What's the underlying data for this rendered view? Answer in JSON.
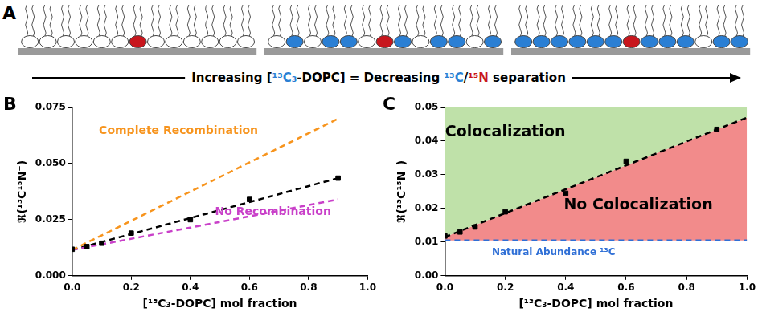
{
  "panel_a": {
    "label": "A",
    "caption": [
      "Increasing [",
      "¹³C₃",
      "-DOPC] = Decreasing ",
      "¹³C",
      "/",
      "¹⁵N",
      " separation"
    ]
  },
  "chart_data": [
    {
      "type": "scatter",
      "title": "B",
      "x_label": "[¹³C₃-DOPC] mol fraction",
      "y_label": "ℜ(¹³C¹⁵N⁻)",
      "xlim": [
        0,
        1
      ],
      "xticks": [
        {
          "value": 0,
          "label": "0.0"
        },
        {
          "value": 0.2,
          "label": "0.2"
        },
        {
          "value": 0.4,
          "label": "0.4"
        },
        {
          "value": 0.6,
          "label": "0.6"
        },
        {
          "value": 0.8,
          "label": "0.8"
        },
        {
          "value": 1,
          "label": "1.0"
        }
      ],
      "ylim": [
        0,
        0.075
      ],
      "yticks": [
        {
          "value": 0,
          "label": "0.000"
        },
        {
          "value": 0.025,
          "label": "0.025"
        },
        {
          "value": 0.05,
          "label": "0.050"
        },
        {
          "value": 0.075,
          "label": "0.075"
        }
      ],
      "grid": false,
      "series": [
        {
          "name": "Complete Recombination",
          "type": "line",
          "line_style": "dashed",
          "color": "#f7941d",
          "x": [
            0,
            0.9
          ],
          "values": [
            0.0115,
            0.07
          ]
        },
        {
          "name": "No Recombination",
          "type": "line",
          "line_style": "dashed",
          "color": "#c940c9",
          "x": [
            0,
            0.9
          ],
          "values": [
            0.0115,
            0.034
          ]
        },
        {
          "type": "line",
          "line_style": "dashed",
          "color": "#000000",
          "x": [
            0,
            0.9
          ],
          "values": [
            0.0115,
            0.0435
          ]
        },
        {
          "type": "scatter",
          "marker": "square",
          "color": "#000000",
          "x": [
            0,
            0.05,
            0.1,
            0.2,
            0.4,
            0.6,
            0.9
          ],
          "values": [
            0.0118,
            0.013,
            0.0145,
            0.019,
            0.025,
            0.034,
            0.0435
          ]
        }
      ]
    },
    {
      "type": "scatter",
      "title": "C",
      "x_label": "[¹³C₃-DOPC] mol fraction",
      "y_label": "ℜ(¹³C¹⁵N⁻)",
      "xlim": [
        0,
        1
      ],
      "xticks": [
        {
          "value": 0,
          "label": "0.0"
        },
        {
          "value": 0.2,
          "label": "0.2"
        },
        {
          "value": 0.4,
          "label": "0.4"
        },
        {
          "value": 0.6,
          "label": "0.6"
        },
        {
          "value": 0.8,
          "label": "0.8"
        },
        {
          "value": 1,
          "label": "1.0"
        }
      ],
      "ylim": [
        0,
        0.05
      ],
      "yticks": [
        {
          "value": 0,
          "label": "0.00"
        },
        {
          "value": 0.01,
          "label": "0.01"
        },
        {
          "value": 0.02,
          "label": "0.02"
        },
        {
          "value": 0.03,
          "label": "0.03"
        },
        {
          "value": 0.04,
          "label": "0.04"
        },
        {
          "value": 0.05,
          "label": "0.05"
        }
      ],
      "grid": false,
      "series": [
        {
          "name": "Colocalization",
          "type": "area",
          "color": "#bfe1a9",
          "x": [
            0,
            1
          ],
          "values": [
            0.0115,
            0.047
          ]
        },
        {
          "name": "No Colocalization",
          "type": "area",
          "color": "#f28b8b",
          "x": [
            0,
            1
          ],
          "values": [
            0.0105,
            0.0105
          ]
        },
        {
          "name": "Natural Abundance ¹³C",
          "type": "line",
          "line_style": "dashed",
          "color": "#2f6fd6",
          "x": [
            0,
            1
          ],
          "values": [
            0.0105,
            0.0105
          ]
        },
        {
          "type": "line",
          "line_style": "dashed",
          "color": "#000000",
          "x": [
            0,
            1
          ],
          "values": [
            0.0115,
            0.047
          ]
        },
        {
          "type": "scatter",
          "marker": "square",
          "color": "#000000",
          "x": [
            0,
            0.05,
            0.1,
            0.2,
            0.4,
            0.6,
            0.9
          ],
          "values": [
            0.0118,
            0.013,
            0.0145,
            0.019,
            0.0245,
            0.034,
            0.0435
          ]
        }
      ]
    }
  ]
}
